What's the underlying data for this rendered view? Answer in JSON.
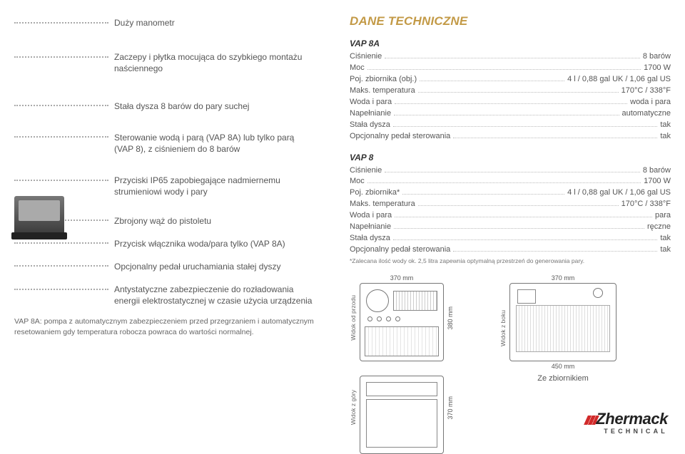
{
  "features": [
    "Duży manometr",
    "Zaczepy i płytka mocująca do szybkiego montażu naściennego",
    "Stała dysza 8 barów do pary suchej",
    "Sterowanie wodą i parą (VAP 8A) lub tylko parą (VAP 8), z ciśnieniem do 8 barów",
    "Przyciski IP65 zapobiegające nadmiernemu strumieniowi wody i pary",
    "Zbrojony wąż do pistoletu",
    "Przycisk włącznika woda/para tylko (VAP 8A)",
    "Opcjonalny pedał uruchamiania stałej dyszy",
    "Antystatyczne zabezpieczenie do rozładowania energii elektrostatycznej w czasie użycia urządzenia"
  ],
  "left_footnote": "VAP 8A: pompa z automatycznym zabezpieczeniem przed przegrzaniem i automatycznym resetowaniem gdy temperatura robocza powraca do wartości normalnej.",
  "tech_title": "DANE TECHNICZNE",
  "spec_blocks": [
    {
      "model": "VAP 8A",
      "rows": [
        {
          "label": "Ciśnienie",
          "value": "8 barów"
        },
        {
          "label": "Moc",
          "value": "1700 W"
        },
        {
          "label": "Poj. zbiornika (obj.)",
          "value": "4 l / 0,88 gal UK / 1,06 gal US"
        },
        {
          "label": "Maks. temperatura",
          "value": "170°C / 338°F"
        },
        {
          "label": "Woda i para",
          "value": "woda i para"
        },
        {
          "label": "Napełnianie",
          "value": "automatyczne"
        },
        {
          "label": "Stała dysza",
          "value": "tak"
        },
        {
          "label": "Opcjonalny pedał sterowania",
          "value": "tak"
        }
      ]
    },
    {
      "model": "VAP 8",
      "rows": [
        {
          "label": "Ciśnienie",
          "value": "8 barów"
        },
        {
          "label": "Moc",
          "value": "1700 W"
        },
        {
          "label": "Poj. zbiornika*",
          "value": "4 l / 0,88 gal UK / 1,06 gal US"
        },
        {
          "label": "Maks. temperatura",
          "value": "170°C / 338°F"
        },
        {
          "label": "Woda i para",
          "value": "para"
        },
        {
          "label": "Napełnianie",
          "value": "ręczne"
        },
        {
          "label": "Stała dysza",
          "value": "tak"
        },
        {
          "label": "Opcjonalny pedał sterowania",
          "value": "tak"
        }
      ],
      "note": "*Zalecana ilość wody ok. 2,5 litra zapewnia optymalną przestrzeń do generowania pary."
    }
  ],
  "drawings": {
    "front_label": "Widok od przodu",
    "side_label": "Widok z boku",
    "top_label": "Widok z góry",
    "w_front": "370 mm",
    "h_front": "380 mm",
    "w_side": "370 mm",
    "h_top": "370 mm",
    "bottom_side": "450 mm",
    "caption_side": "Ze zbiornikiem"
  },
  "brand": {
    "name": "Zhermack",
    "sub": "TECHNICAL"
  }
}
